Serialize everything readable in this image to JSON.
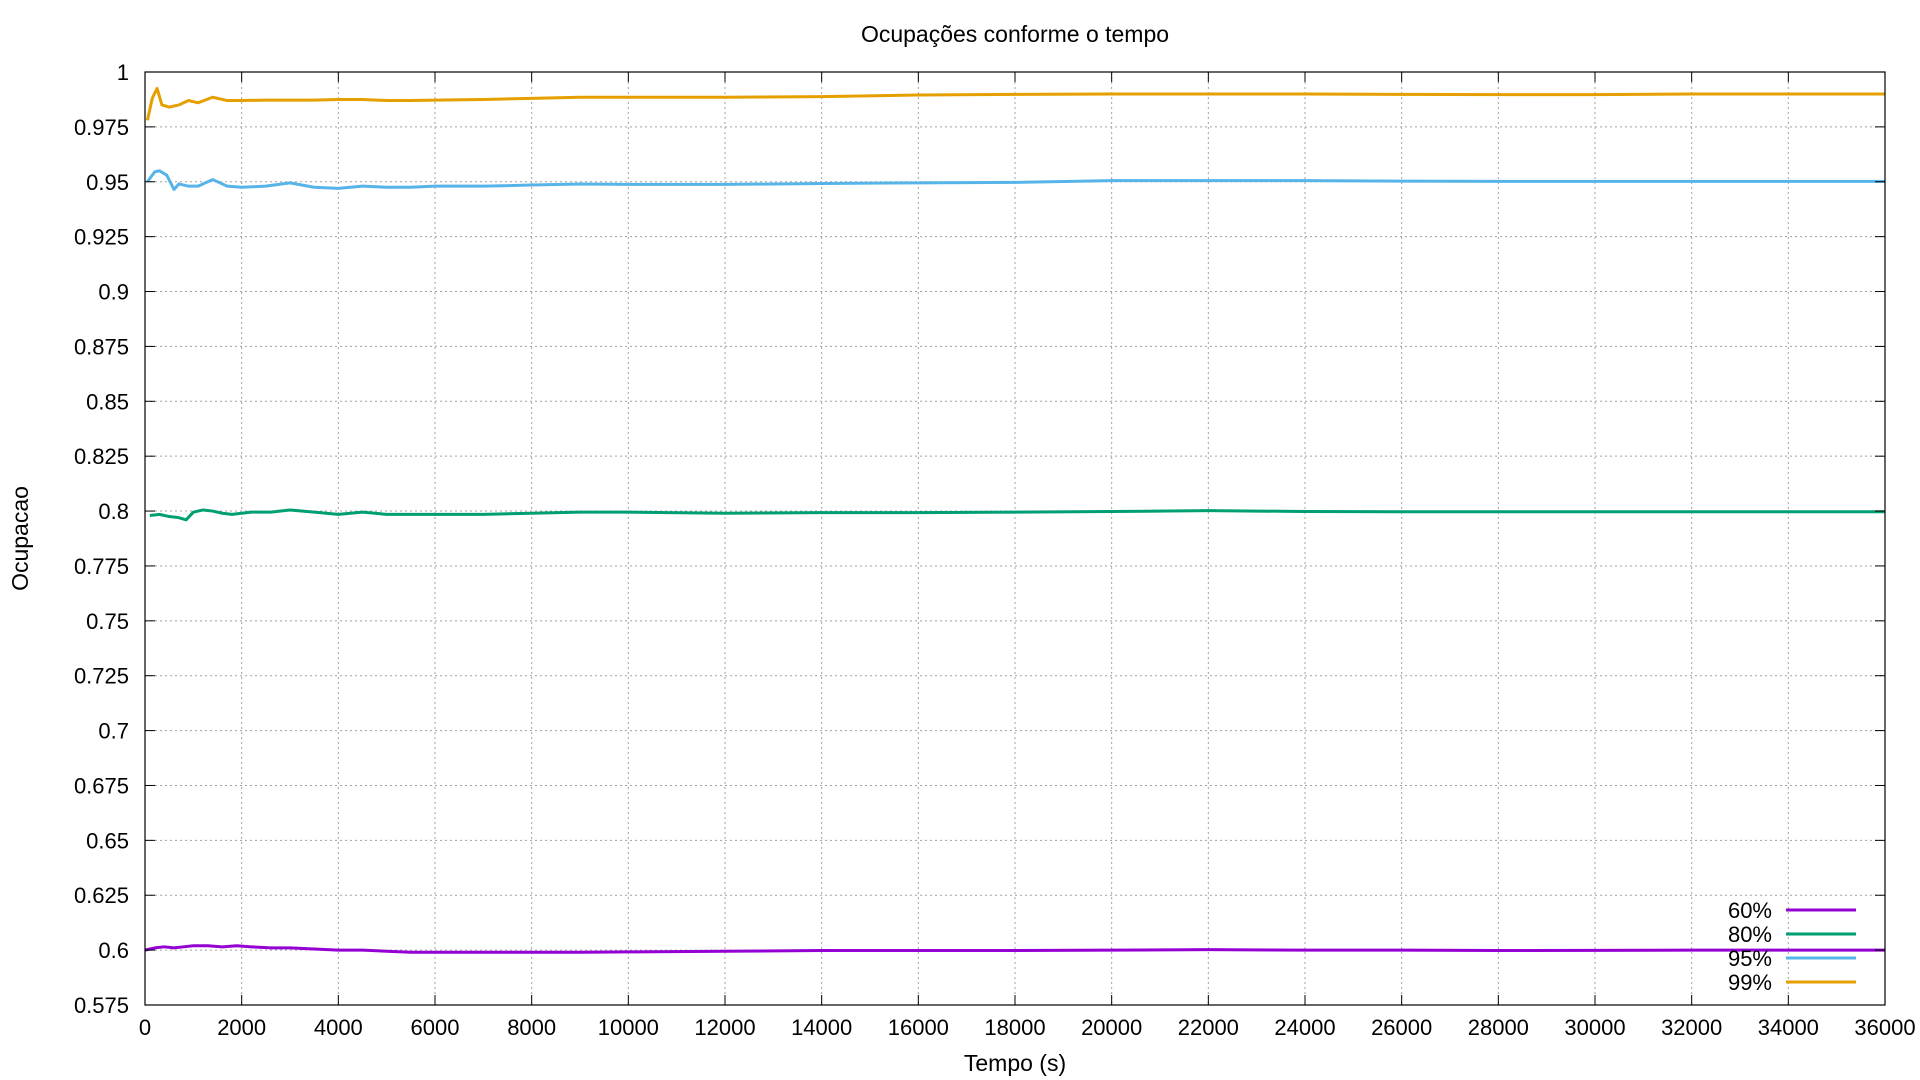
{
  "chart_data": {
    "type": "line",
    "title": "Ocupações conforme o tempo",
    "xlabel": "Tempo (s)",
    "ylabel": "Ocupacao",
    "xlim": [
      0,
      36000
    ],
    "ylim": [
      0.575,
      1
    ],
    "xticks": [
      0,
      2000,
      4000,
      6000,
      8000,
      10000,
      12000,
      14000,
      16000,
      18000,
      20000,
      22000,
      24000,
      26000,
      28000,
      30000,
      32000,
      34000,
      36000
    ],
    "yticks": [
      0.575,
      0.6,
      0.625,
      0.65,
      0.675,
      0.7,
      0.725,
      0.75,
      0.775,
      0.8,
      0.825,
      0.85,
      0.875,
      0.9,
      0.925,
      0.95,
      0.975,
      1
    ],
    "ytick_labels": [
      "0.575",
      "0.6",
      "0.625",
      "0.65",
      "0.675",
      "0.7",
      "0.725",
      "0.75",
      "0.775",
      "0.8",
      "0.825",
      "0.85",
      "0.875",
      "0.9",
      "0.925",
      "0.95",
      "0.975",
      "1"
    ],
    "grid": true,
    "legend_position": "bottom-right",
    "series": [
      {
        "name": "60%",
        "color": "#9400d3",
        "x": [
          0,
          200,
          400,
          600,
          800,
          1000,
          1300,
          1600,
          1900,
          2200,
          2600,
          3000,
          3500,
          4000,
          4500,
          5000,
          5500,
          6000,
          7000,
          8000,
          9000,
          10000,
          12000,
          14000,
          16000,
          18000,
          20000,
          22000,
          24000,
          26000,
          28000,
          30000,
          32000,
          34000,
          36000
        ],
        "y": [
          0.6,
          0.601,
          0.6015,
          0.601,
          0.6015,
          0.602,
          0.602,
          0.6015,
          0.602,
          0.6015,
          0.601,
          0.601,
          0.6005,
          0.6,
          0.6,
          0.5995,
          0.599,
          0.599,
          0.599,
          0.599,
          0.599,
          0.5992,
          0.5995,
          0.5998,
          0.5998,
          0.5998,
          0.6,
          0.6002,
          0.6,
          0.6,
          0.5998,
          0.5999,
          0.6,
          0.6,
          0.6
        ]
      },
      {
        "name": "80%",
        "color": "#009e73",
        "x": [
          100,
          300,
          500,
          700,
          850,
          1000,
          1200,
          1400,
          1600,
          1800,
          2200,
          2600,
          3000,
          3500,
          4000,
          4500,
          5000,
          5500,
          6000,
          7000,
          8000,
          9000,
          10000,
          12000,
          14000,
          16000,
          18000,
          20000,
          22000,
          24000,
          26000,
          28000,
          30000,
          32000,
          34000,
          36000
        ],
        "y": [
          0.798,
          0.7985,
          0.7975,
          0.797,
          0.796,
          0.7995,
          0.8005,
          0.8,
          0.799,
          0.7985,
          0.7995,
          0.7995,
          0.8005,
          0.7995,
          0.7985,
          0.7995,
          0.7985,
          0.7985,
          0.7985,
          0.7985,
          0.799,
          0.7995,
          0.7995,
          0.799,
          0.7993,
          0.7993,
          0.7995,
          0.7998,
          0.8002,
          0.7998,
          0.7997,
          0.7997,
          0.7997,
          0.7997,
          0.7997,
          0.7997
        ]
      },
      {
        "name": "95%",
        "color": "#56b4e9",
        "x": [
          50,
          200,
          300,
          450,
          600,
          700,
          900,
          1100,
          1400,
          1700,
          2000,
          2500,
          3000,
          3500,
          4000,
          4500,
          5000,
          5500,
          6000,
          7000,
          8000,
          9000,
          10000,
          12000,
          14000,
          16000,
          18000,
          20000,
          22000,
          24000,
          26000,
          28000,
          30000,
          32000,
          34000,
          36000
        ],
        "y": [
          0.95,
          0.9545,
          0.955,
          0.953,
          0.9465,
          0.949,
          0.948,
          0.948,
          0.951,
          0.948,
          0.9475,
          0.948,
          0.9495,
          0.9475,
          0.947,
          0.948,
          0.9475,
          0.9475,
          0.948,
          0.948,
          0.9485,
          0.949,
          0.9488,
          0.9488,
          0.9492,
          0.9495,
          0.9497,
          0.9505,
          0.9505,
          0.9505,
          0.9503,
          0.9502,
          0.9502,
          0.9502,
          0.9502,
          0.9502
        ]
      },
      {
        "name": "99%",
        "color": "#e69f00",
        "x": [
          50,
          150,
          250,
          350,
          500,
          700,
          900,
          1100,
          1400,
          1700,
          2000,
          2500,
          3000,
          3500,
          4000,
          4500,
          5000,
          5500,
          6000,
          7000,
          8000,
          9000,
          10000,
          12000,
          14000,
          16000,
          18000,
          20000,
          22000,
          24000,
          26000,
          28000,
          30000,
          32000,
          34000,
          36000
        ],
        "y": [
          0.978,
          0.988,
          0.9925,
          0.985,
          0.984,
          0.985,
          0.987,
          0.986,
          0.9885,
          0.987,
          0.987,
          0.9872,
          0.9872,
          0.9872,
          0.9875,
          0.9875,
          0.987,
          0.987,
          0.9872,
          0.9875,
          0.988,
          0.9885,
          0.9885,
          0.9885,
          0.9888,
          0.9895,
          0.9898,
          0.99,
          0.99,
          0.99,
          0.9898,
          0.9897,
          0.9897,
          0.99,
          0.99,
          0.99
        ]
      }
    ]
  }
}
